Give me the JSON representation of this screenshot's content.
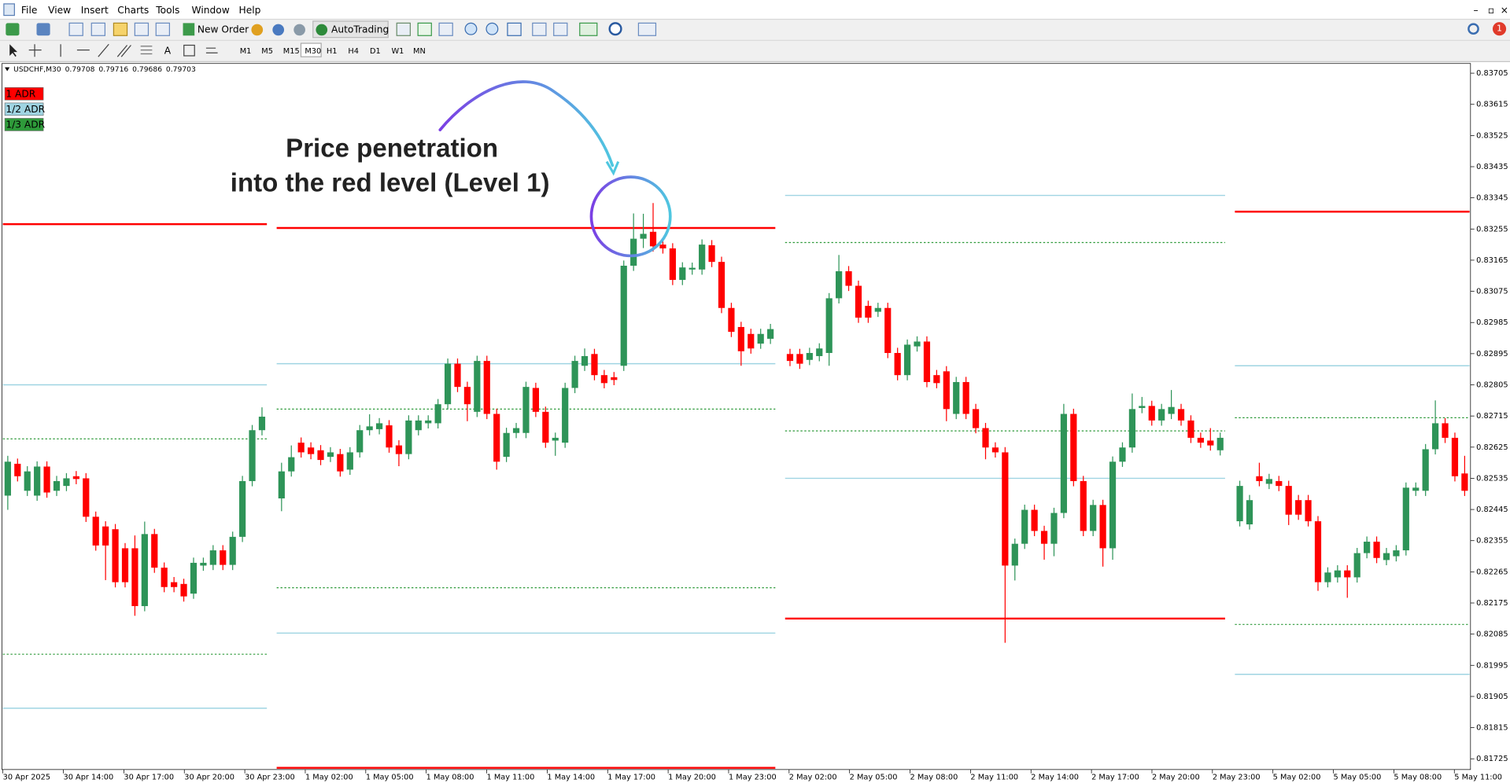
{
  "ui": {
    "menu": [
      "File",
      "View",
      "Insert",
      "Charts",
      "Tools",
      "Window",
      "Help"
    ],
    "new_order": "New Order",
    "auto_trading": "AutoTrading",
    "timeframes": [
      "M1",
      "M5",
      "M15",
      "M30",
      "H1",
      "H4",
      "D1",
      "W1",
      "MN"
    ],
    "badge": "1"
  },
  "chart_data": {
    "type": "candlestick",
    "title": "USDCHF,M30",
    "quote": [
      0.79708,
      0.79716,
      0.79686,
      0.79703
    ],
    "annotation": [
      "Price penetration",
      "into the red level (Level 1)"
    ],
    "up_color": "#2e9458",
    "down_color": "#ff0000",
    "series": [
      {
        "name": "1 ADR",
        "color": "#ff0000"
      },
      {
        "name": "1/2 ADR",
        "color": "#9fd4e2"
      },
      {
        "name": "1/3 ADR",
        "color": "#2e9a3a"
      }
    ],
    "ylim": [
      0.81694,
      0.83733
    ],
    "yticks": [
      0.83705,
      0.83615,
      0.83525,
      0.83435,
      0.83345,
      0.83255,
      0.83165,
      0.83075,
      0.82985,
      0.82895,
      0.82805,
      0.82715,
      0.82625,
      0.82535,
      0.82445,
      0.82355,
      0.82265,
      0.82175,
      0.82085,
      0.81995,
      0.81905,
      0.81815,
      0.81725
    ],
    "x_labels": [
      "30 Apr 2025",
      "30 Apr 14:00",
      "30 Apr 17:00",
      "30 Apr 20:00",
      "30 Apr 23:00",
      "1 May 02:00",
      "1 May 05:00",
      "1 May 08:00",
      "1 May 11:00",
      "1 May 14:00",
      "1 May 17:00",
      "1 May 20:00",
      "1 May 23:00",
      "2 May 02:00",
      "2 May 05:00",
      "2 May 08:00",
      "2 May 11:00",
      "2 May 14:00",
      "2 May 17:00",
      "2 May 20:00",
      "2 May 23:00",
      "5 May 02:00",
      "5 May 05:00",
      "5 May 08:00",
      "5 May 11:00"
    ],
    "days": [
      {
        "levels": [
          [
            0.83269,
            null
          ],
          [
            0.82805,
            0.81871
          ],
          [
            0.82649,
            0.82027
          ]
        ],
        "candles": [
          [
            0.82485,
            0.826,
            0.82444,
            0.82583
          ],
          [
            0.82577,
            0.82592,
            0.82526,
            0.82541
          ],
          [
            0.82499,
            0.8257,
            0.82484,
            0.82555
          ],
          [
            0.82485,
            0.82584,
            0.8247,
            0.82569
          ],
          [
            0.82569,
            0.82584,
            0.82479,
            0.82494
          ],
          [
            0.82499,
            0.82542,
            0.82484,
            0.82527
          ],
          [
            0.82513,
            0.8255,
            0.82498,
            0.82535
          ],
          [
            0.82541,
            0.82556,
            0.82518,
            0.82533
          ],
          [
            0.82535,
            0.8255,
            0.82409,
            0.82424
          ],
          [
            0.82424,
            0.82439,
            0.82326,
            0.82341
          ],
          [
            0.82396,
            0.82411,
            0.82241,
            0.82341
          ],
          [
            0.82388,
            0.82403,
            0.8222,
            0.82235
          ],
          [
            0.82333,
            0.82348,
            0.8222,
            0.82235
          ],
          [
            0.82333,
            0.8237,
            0.82138,
            0.82166
          ],
          [
            0.82166,
            0.8241,
            0.82151,
            0.82374
          ],
          [
            0.82374,
            0.82389,
            0.82262,
            0.82277
          ],
          [
            0.82277,
            0.82292,
            0.82206,
            0.82221
          ],
          [
            0.82235,
            0.8225,
            0.82206,
            0.82221
          ],
          [
            0.8223,
            0.82245,
            0.82179,
            0.82194
          ],
          [
            0.82202,
            0.82306,
            0.82187,
            0.82291
          ],
          [
            0.82283,
            0.82306,
            0.82268,
            0.82291
          ],
          [
            0.82285,
            0.82342,
            0.8227,
            0.82327
          ],
          [
            0.82327,
            0.82342,
            0.8227,
            0.82285
          ],
          [
            0.82285,
            0.82381,
            0.8227,
            0.82366
          ],
          [
            0.82366,
            0.82542,
            0.82351,
            0.82527
          ],
          [
            0.82527,
            0.82689,
            0.82512,
            0.82674
          ],
          [
            0.82674,
            0.8274,
            0.82659,
            0.82713
          ]
        ]
      },
      {
        "levels": [
          [
            0.83258,
            0.81699
          ],
          [
            0.82866,
            0.82088
          ],
          [
            0.82735,
            0.82219
          ]
        ],
        "candles": [
          [
            0.82477,
            0.8258,
            0.8244,
            0.82555
          ],
          [
            0.82555,
            0.8263,
            0.8254,
            0.82596
          ],
          [
            0.82638,
            0.82653,
            0.82595,
            0.8261
          ],
          [
            0.82624,
            0.82639,
            0.8259,
            0.82605
          ],
          [
            0.82616,
            0.82631,
            0.82573,
            0.82588
          ],
          [
            0.82597,
            0.82625,
            0.82582,
            0.8261
          ],
          [
            0.82605,
            0.8262,
            0.8254,
            0.82555
          ],
          [
            0.8256,
            0.82625,
            0.82545,
            0.8261
          ],
          [
            0.8261,
            0.82689,
            0.82595,
            0.82674
          ],
          [
            0.82674,
            0.8272,
            0.82659,
            0.82685
          ],
          [
            0.82677,
            0.82709,
            0.82662,
            0.82694
          ],
          [
            0.82688,
            0.82703,
            0.82609,
            0.82624
          ],
          [
            0.8263,
            0.82645,
            0.8257,
            0.82605
          ],
          [
            0.82605,
            0.82717,
            0.8259,
            0.82702
          ],
          [
            0.82674,
            0.82717,
            0.82659,
            0.82702
          ],
          [
            0.82694,
            0.82717,
            0.82679,
            0.82702
          ],
          [
            0.82694,
            0.82764,
            0.82679,
            0.82749
          ],
          [
            0.82749,
            0.82881,
            0.82734,
            0.82866
          ],
          [
            0.82866,
            0.82881,
            0.82784,
            0.82799
          ],
          [
            0.82799,
            0.82814,
            0.827,
            0.82749
          ],
          [
            0.82727,
            0.82889,
            0.82712,
            0.82874
          ],
          [
            0.82874,
            0.82889,
            0.82706,
            0.82721
          ],
          [
            0.82721,
            0.82736,
            0.8256,
            0.82583
          ],
          [
            0.82597,
            0.82681,
            0.82582,
            0.82666
          ],
          [
            0.82666,
            0.82695,
            0.82651,
            0.8268
          ],
          [
            0.82666,
            0.82814,
            0.82651,
            0.82799
          ],
          [
            0.82796,
            0.82811,
            0.82712,
            0.82727
          ],
          [
            0.82727,
            0.82742,
            0.82623,
            0.82638
          ],
          [
            0.82644,
            0.82667,
            0.826,
            0.82652
          ],
          [
            0.82638,
            0.82811,
            0.82623,
            0.82796
          ],
          [
            0.82796,
            0.82889,
            0.82781,
            0.82874
          ],
          [
            0.8286,
            0.8291,
            0.82845,
            0.82888
          ],
          [
            0.82894,
            0.82909,
            0.82818,
            0.82833
          ],
          [
            0.82833,
            0.82848,
            0.82795,
            0.8281
          ],
          [
            0.82827,
            0.82842,
            0.82804,
            0.82819
          ],
          [
            0.8286,
            0.83164,
            0.82845,
            0.83149
          ],
          [
            0.83149,
            0.833,
            0.83134,
            0.83227
          ],
          [
            0.83227,
            0.83299,
            0.832,
            0.83241
          ],
          [
            0.83247,
            0.8333,
            0.8319,
            0.83205
          ],
          [
            0.8321,
            0.83225,
            0.83184,
            0.83199
          ],
          [
            0.83199,
            0.83214,
            0.83093,
            0.83108
          ],
          [
            0.83108,
            0.83159,
            0.83093,
            0.83144
          ],
          [
            0.83138,
            0.83158,
            0.83123,
            0.83143
          ],
          [
            0.83138,
            0.83225,
            0.83123,
            0.8321
          ],
          [
            0.83208,
            0.83223,
            0.83145,
            0.8316
          ],
          [
            0.8316,
            0.83175,
            0.83012,
            0.83027
          ],
          [
            0.83027,
            0.83042,
            0.82943,
            0.82958
          ],
          [
            0.82972,
            0.82987,
            0.8286,
            0.82902
          ],
          [
            0.82952,
            0.82967,
            0.82895,
            0.8291
          ],
          [
            0.82924,
            0.82967,
            0.82909,
            0.82952
          ],
          [
            0.82938,
            0.82981,
            0.82923,
            0.82966
          ]
        ]
      },
      {
        "levels": [
          [
            null,
            0.8213
          ],
          [
            0.83352,
            0.82535
          ],
          [
            0.83216,
            0.82672
          ]
        ],
        "candles": [
          [
            0.82894,
            0.82909,
            0.82859,
            0.82874
          ],
          [
            0.82894,
            0.82909,
            0.82851,
            0.82866
          ],
          [
            0.82877,
            0.82912,
            0.82862,
            0.82897
          ],
          [
            0.82888,
            0.82925,
            0.82873,
            0.8291
          ],
          [
            0.82897,
            0.8307,
            0.8286,
            0.83055
          ],
          [
            0.83055,
            0.8318,
            0.8304,
            0.83133
          ],
          [
            0.83133,
            0.83148,
            0.83076,
            0.83091
          ],
          [
            0.83091,
            0.83106,
            0.82984,
            0.82999
          ],
          [
            0.83033,
            0.83048,
            0.82984,
            0.82999
          ],
          [
            0.83016,
            0.83042,
            0.83001,
            0.83027
          ],
          [
            0.83027,
            0.83042,
            0.82882,
            0.82897
          ],
          [
            0.82897,
            0.82912,
            0.82818,
            0.82833
          ],
          [
            0.82833,
            0.82936,
            0.82818,
            0.82921
          ],
          [
            0.82916,
            0.82945,
            0.82901,
            0.8293
          ],
          [
            0.8293,
            0.82945,
            0.82798,
            0.82813
          ],
          [
            0.82833,
            0.82848,
            0.82795,
            0.8281
          ],
          [
            0.82844,
            0.82859,
            0.827,
            0.82735
          ],
          [
            0.82721,
            0.82828,
            0.82706,
            0.82813
          ],
          [
            0.82813,
            0.82828,
            0.82706,
            0.82721
          ],
          [
            0.82735,
            0.8275,
            0.82665,
            0.8268
          ],
          [
            0.8268,
            0.82695,
            0.8259,
            0.82624
          ],
          [
            0.82624,
            0.82639,
            0.82595,
            0.8261
          ],
          [
            0.8261,
            0.82625,
            0.8206,
            0.82283
          ],
          [
            0.82283,
            0.82361,
            0.8224,
            0.82346
          ],
          [
            0.82346,
            0.82459,
            0.82331,
            0.82444
          ],
          [
            0.82444,
            0.82459,
            0.82368,
            0.82383
          ],
          [
            0.82383,
            0.82398,
            0.823,
            0.82346
          ],
          [
            0.82346,
            0.8245,
            0.8231,
            0.82435
          ],
          [
            0.82435,
            0.8275,
            0.8242,
            0.82721
          ],
          [
            0.82721,
            0.82736,
            0.82512,
            0.82527
          ],
          [
            0.82527,
            0.82542,
            0.82368,
            0.82383
          ],
          [
            0.82383,
            0.82473,
            0.82368,
            0.82458
          ],
          [
            0.82458,
            0.82473,
            0.8228,
            0.82333
          ],
          [
            0.82333,
            0.82598,
            0.823,
            0.82583
          ],
          [
            0.82583,
            0.82639,
            0.82568,
            0.82624
          ],
          [
            0.82624,
            0.8278,
            0.82609,
            0.82735
          ],
          [
            0.82738,
            0.8277,
            0.82723,
            0.82744
          ],
          [
            0.82744,
            0.82759,
            0.82687,
            0.82702
          ],
          [
            0.82702,
            0.8275,
            0.82687,
            0.82735
          ],
          [
            0.82721,
            0.8279,
            0.82706,
            0.82741
          ],
          [
            0.82735,
            0.8275,
            0.82687,
            0.82702
          ],
          [
            0.82702,
            0.82717,
            0.82637,
            0.82652
          ],
          [
            0.82652,
            0.82667,
            0.82623,
            0.82638
          ],
          [
            0.82644,
            0.8268,
            0.82615,
            0.8263
          ],
          [
            0.82616,
            0.82667,
            0.82601,
            0.82652
          ]
        ]
      },
      {
        "levels": [
          [
            0.83305,
            null
          ],
          [
            0.8286,
            0.81969
          ],
          [
            0.8271,
            0.82113
          ]
        ],
        "candles": [
          [
            0.82411,
            0.82528,
            0.82396,
            0.82513
          ],
          [
            0.82402,
            0.82487,
            0.82387,
            0.82472
          ],
          [
            0.82541,
            0.8258,
            0.82512,
            0.82527
          ],
          [
            0.82519,
            0.82548,
            0.82504,
            0.82533
          ],
          [
            0.82527,
            0.82542,
            0.82498,
            0.82513
          ],
          [
            0.82513,
            0.82528,
            0.824,
            0.8243
          ],
          [
            0.82472,
            0.82487,
            0.82415,
            0.8243
          ],
          [
            0.82472,
            0.82487,
            0.82396,
            0.82411
          ],
          [
            0.82411,
            0.82426,
            0.8221,
            0.82235
          ],
          [
            0.82235,
            0.82278,
            0.8222,
            0.82263
          ],
          [
            0.82249,
            0.82284,
            0.82234,
            0.82269
          ],
          [
            0.82269,
            0.82284,
            0.8219,
            0.82249
          ],
          [
            0.82249,
            0.82334,
            0.82234,
            0.82319
          ],
          [
            0.82319,
            0.82367,
            0.82304,
            0.82352
          ],
          [
            0.82352,
            0.82367,
            0.8229,
            0.82305
          ],
          [
            0.82299,
            0.82334,
            0.82284,
            0.82319
          ],
          [
            0.8231,
            0.82342,
            0.82295,
            0.82327
          ],
          [
            0.82327,
            0.82523,
            0.82312,
            0.82508
          ],
          [
            0.82499,
            0.82523,
            0.82484,
            0.82508
          ],
          [
            0.82499,
            0.82634,
            0.82484,
            0.82619
          ],
          [
            0.82619,
            0.8276,
            0.82604,
            0.82694
          ],
          [
            0.82694,
            0.82709,
            0.82637,
            0.82652
          ],
          [
            0.82652,
            0.82667,
            0.82526,
            0.82541
          ],
          [
            0.82549,
            0.826,
            0.82484,
            0.82499
          ]
        ]
      }
    ]
  }
}
